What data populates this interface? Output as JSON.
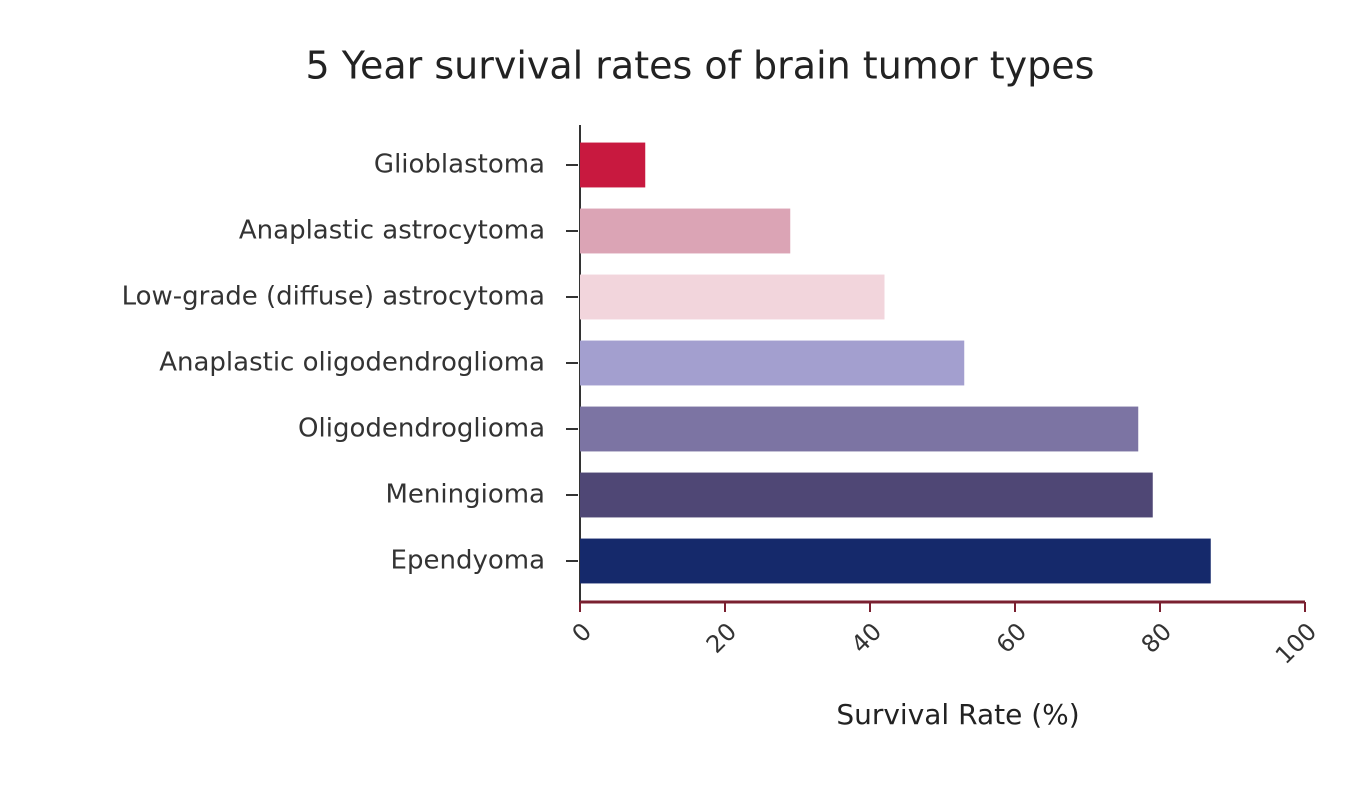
{
  "chart_data": {
    "type": "bar",
    "orientation": "horizontal",
    "title": "5 Year survival rates of brain tumor types",
    "x_label": "Survival Rate (%)",
    "categories": [
      "Glioblastoma",
      "Anaplastic astrocytoma",
      "Low-grade (diffuse) astrocytoma",
      "Anaplastic oligodendroglioma",
      "Oligodendroglioma",
      "Meningioma",
      "Ependyoma"
    ],
    "values": [
      9,
      29,
      42,
      53,
      77,
      79,
      87
    ],
    "colors": [
      "#c8193f",
      "#dba4b5",
      "#f2d5dc",
      "#a39fcf",
      "#7c74a3",
      "#4f4775",
      "#15296b"
    ],
    "xlim": [
      0,
      100
    ],
    "xticks": [
      0,
      20,
      40,
      60,
      80,
      100
    ]
  }
}
